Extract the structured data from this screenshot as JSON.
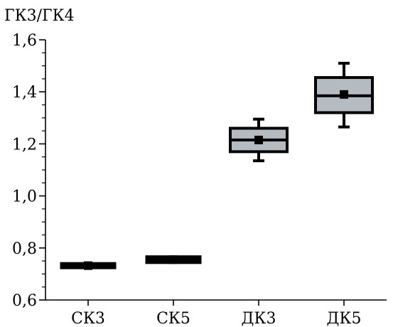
{
  "chart_data": {
    "type": "box",
    "ylabel": "ГК3/ГК4",
    "xlabel": "",
    "title": "",
    "ylim": [
      0.6,
      1.6
    ],
    "yticks": [
      {
        "value": 0.6,
        "label": "0,6"
      },
      {
        "value": 0.8,
        "label": "0,8"
      },
      {
        "value": 1.0,
        "label": "1,0"
      },
      {
        "value": 1.2,
        "label": "1,2"
      },
      {
        "value": 1.4,
        "label": "1,4"
      },
      {
        "value": 1.6,
        "label": "1,6"
      }
    ],
    "minor_tick_step": 0.05,
    "categories": [
      "СК3",
      "СК5",
      "ДК3",
      "ДК5"
    ],
    "boxes": [
      {
        "category": "СК3",
        "whisker_low": 0.728,
        "q1": 0.728,
        "median": 0.732,
        "q3": 0.736,
        "whisker_high": 0.736,
        "mean": 0.732
      },
      {
        "category": "СК5",
        "whisker_low": 0.748,
        "q1": 0.748,
        "median": 0.755,
        "q3": 0.762,
        "whisker_high": 0.762,
        "mean": 0.755
      },
      {
        "category": "ДК3",
        "whisker_low": 1.135,
        "q1": 1.17,
        "median": 1.215,
        "q3": 1.26,
        "whisker_high": 1.295,
        "mean": 1.215
      },
      {
        "category": "ДК5",
        "whisker_low": 1.265,
        "q1": 1.32,
        "median": 1.385,
        "q3": 1.455,
        "whisker_high": 1.51,
        "mean": 1.39
      }
    ],
    "box_fill": "#b4bcc2",
    "line_color": "#000000",
    "grid": false,
    "legend": "none"
  }
}
